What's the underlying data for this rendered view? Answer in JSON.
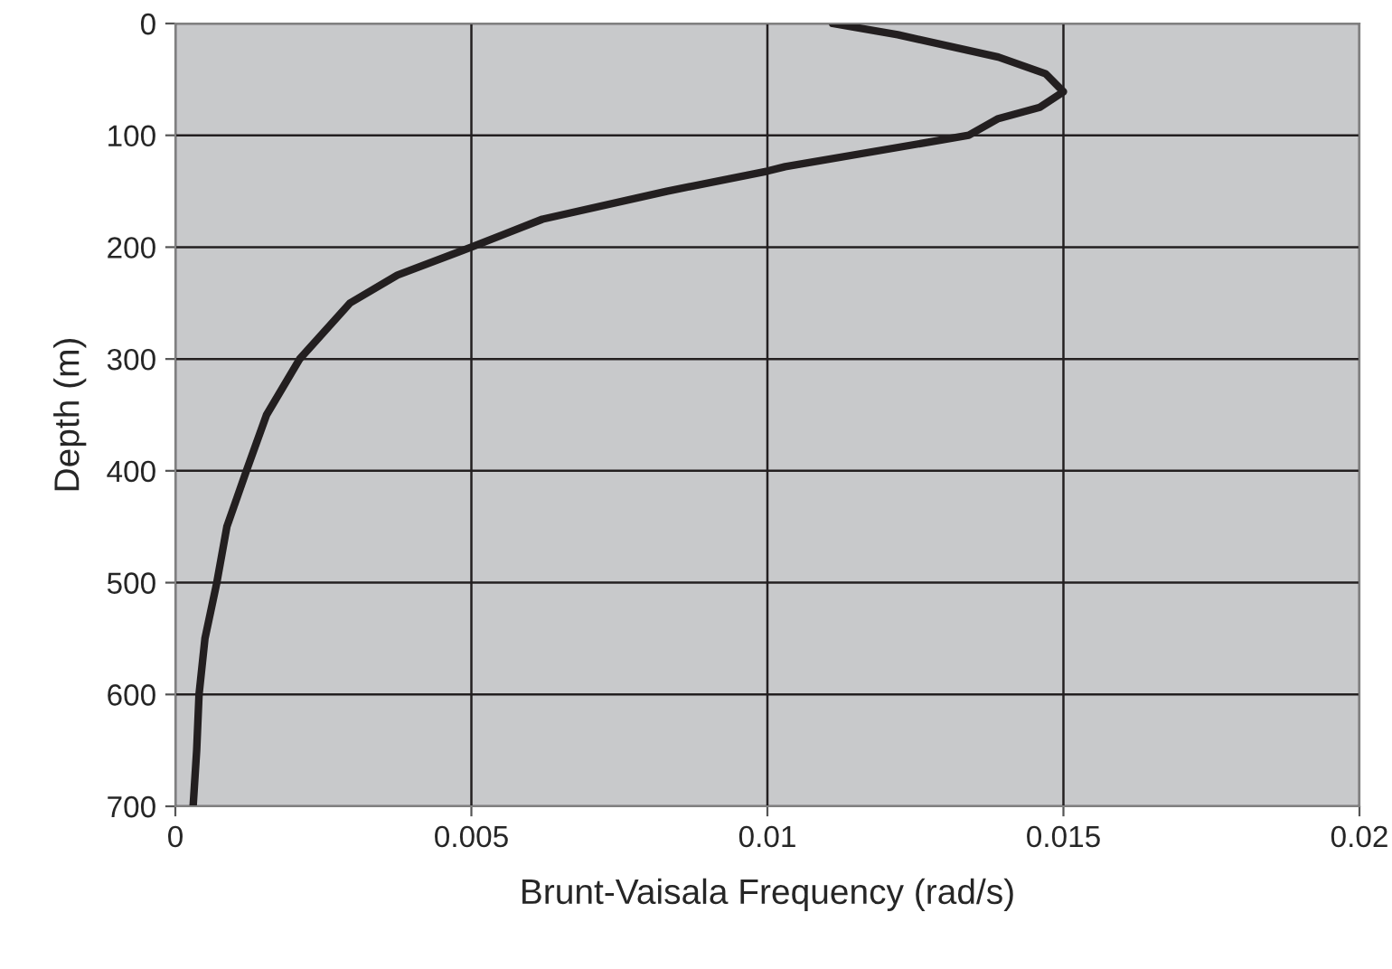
{
  "chart_data": {
    "type": "line",
    "xlabel": "Brunt-Vaisala Frequency (rad/s)",
    "ylabel": "Depth (m)",
    "series": [
      {
        "color": "#231f20",
        "x": [
          0.0111,
          0.0122,
          0.0139,
          0.0147,
          0.015,
          0.0146,
          0.0139,
          0.0134,
          0.0103,
          0.01,
          0.0083,
          0.0062,
          0.005,
          0.00375,
          0.00295,
          0.0021,
          0.00154,
          0.0012,
          0.00087,
          0.0007,
          0.0005,
          0.0004,
          0.00036,
          0.0003
        ],
        "values": [
          0,
          10,
          30,
          45,
          61,
          75,
          85,
          100,
          128,
          132,
          150,
          175,
          200,
          225,
          250,
          300,
          350,
          400,
          450,
          500,
          550,
          600,
          650,
          700
        ]
      }
    ],
    "xlim": [
      0,
      0.02
    ],
    "xticks": [
      0,
      0.005,
      0.01,
      0.015,
      0.02
    ],
    "ylim": [
      700,
      0
    ],
    "yticks": [
      0,
      100,
      200,
      300,
      400,
      500,
      600,
      700
    ],
    "grid": true,
    "line_style": "solid",
    "marker": "none"
  }
}
